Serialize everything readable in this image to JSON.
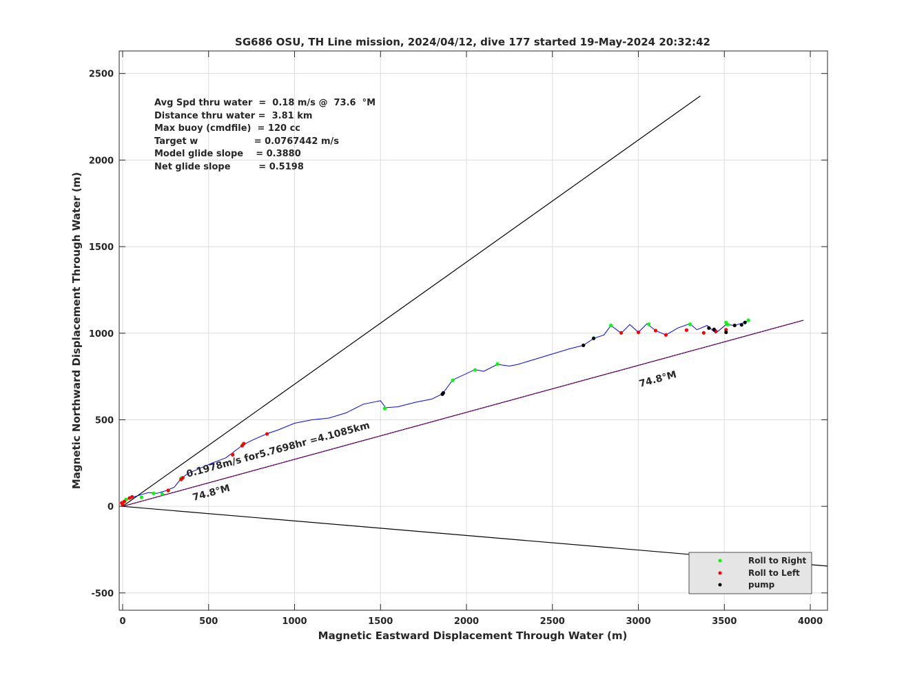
{
  "chart_data": {
    "type": "scatter",
    "title": "SG686 OSU, TH Line mission, 2024/04/12, dive 177 started 19-May-2024 20:32:42",
    "xlabel": "Magnetic Eastward Displacement Through Water (m)",
    "ylabel": "Magnetic Northward Displacement Through Water (m)",
    "xlim": [
      -20,
      4100
    ],
    "ylim": [
      -600,
      2630
    ],
    "xticks": [
      0,
      500,
      1000,
      1500,
      2000,
      2500,
      3000,
      3500,
      4000
    ],
    "xtick_labels": [
      "0",
      "500",
      "1000",
      "1500",
      "2000",
      "2500",
      "3000",
      "3500",
      "4000"
    ],
    "yticks": [
      -500,
      0,
      500,
      1000,
      1500,
      2000,
      2500
    ],
    "ytick_labels": [
      "-500",
      "0",
      "500",
      "1000",
      "1500",
      "2000",
      "2500"
    ],
    "grid": true,
    "legend_position": "bottom-right",
    "colors": {
      "track": "#0000ff",
      "roll_right": "#00ff00",
      "roll_left": "#ff0000",
      "pump": "#000000",
      "heading_line": "#cc00cc",
      "wedge": "#000000"
    },
    "stats_lines": [
      "Avg Spd thru water  =  0.18 m/s @  73.6  °M",
      "Distance thru water =  3.81 km",
      "Max buoy (cmdfile)  = 120 cc",
      "Target w                  = 0.0767442 m/s",
      "Model glide slope    = 0.3880",
      "Net glide slope         = 0.5198"
    ],
    "annotations": {
      "track_label": "0.1978m/s for5.7698hr =4.1085km",
      "heading_label_near": "74.8°M",
      "heading_label_far": "74.8°M"
    },
    "reference_lines": [
      {
        "name": "wedge-upper",
        "x": [
          0,
          3360
        ],
        "y": [
          0,
          2370
        ]
      },
      {
        "name": "wedge-lower",
        "x": [
          0,
          4100
        ],
        "y": [
          0,
          -345
        ]
      },
      {
        "name": "heading-74.8",
        "x": [
          0,
          3960
        ],
        "y": [
          0,
          1075
        ]
      }
    ],
    "series": [
      {
        "name": "track",
        "x": [
          0,
          8,
          20,
          50,
          100,
          150,
          200,
          250,
          300,
          340,
          380,
          450,
          520,
          600,
          640,
          700,
          750,
          840,
          900,
          1000,
          1100,
          1200,
          1300,
          1400,
          1500,
          1530,
          1600,
          1700,
          1800,
          1860,
          1920,
          2050,
          2100,
          2180,
          2250,
          2300,
          2400,
          2500,
          2600,
          2680,
          2740,
          2800,
          2840,
          2900,
          2950,
          3000,
          3050,
          3100,
          3160,
          3230,
          3300,
          3340,
          3400,
          3450,
          3510,
          3560,
          3610,
          3650
        ],
        "y": [
          0,
          25,
          35,
          50,
          65,
          80,
          75,
          90,
          110,
          160,
          190,
          220,
          250,
          280,
          310,
          355,
          380,
          420,
          440,
          480,
          500,
          510,
          540,
          590,
          610,
          570,
          575,
          600,
          620,
          650,
          730,
          790,
          780,
          820,
          810,
          820,
          850,
          880,
          910,
          930,
          970,
          990,
          1045,
          1000,
          1050,
          1005,
          1055,
          1015,
          990,
          1030,
          1055,
          1020,
          1045,
          1000,
          1050,
          1045,
          1060,
          1075
        ]
      },
      {
        "name": "Roll to Right",
        "x": [
          2,
          20,
          110,
          180,
          230,
          265,
          340,
          640,
          700,
          840,
          1525,
          1920,
          2050,
          2180,
          2740,
          2840,
          3060,
          3300,
          3510,
          3520,
          3640
        ],
        "y": [
          18,
          40,
          52,
          75,
          72,
          90,
          162,
          300,
          358,
          418,
          565,
          728,
          788,
          822,
          972,
          1045,
          1052,
          1052,
          1062,
          1050,
          1075
        ]
      },
      {
        "name": "Roll to Left",
        "x": [
          -5,
          0,
          10,
          40,
          55,
          265,
          340,
          350,
          640,
          695,
          705,
          840,
          2900,
          3000,
          3100,
          3160,
          3280,
          3380,
          3450,
          3510
        ],
        "y": [
          20,
          8,
          28,
          48,
          55,
          92,
          155,
          165,
          298,
          350,
          362,
          418,
          1002,
          1005,
          1015,
          990,
          1018,
          1002,
          1012,
          1020
        ]
      },
      {
        "name": "pump",
        "x": [
          1860,
          1865,
          2680,
          2740,
          3410,
          3440,
          3510,
          3560,
          3600,
          3620
        ],
        "y": [
          648,
          655,
          930,
          970,
          1030,
          1022,
          1005,
          1045,
          1048,
          1062
        ]
      }
    ],
    "legend": [
      "Roll to Right",
      "Roll to Left",
      "pump"
    ]
  }
}
